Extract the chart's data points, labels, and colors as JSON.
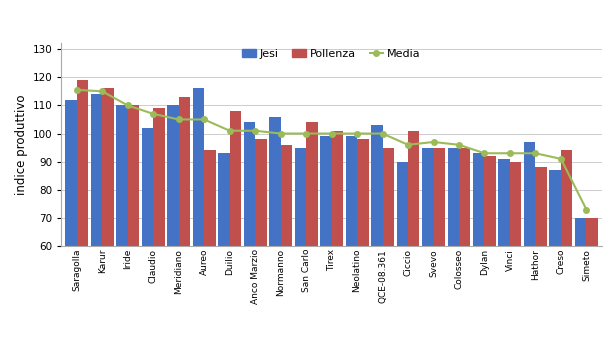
{
  "categories": [
    "Saragolla",
    "Karur",
    "Iride",
    "Claudio",
    "Meridiano",
    "Aureo",
    "Duilio",
    "Anco Marzio",
    "Normanno",
    "San Carlo",
    "Tirex",
    "Neolatino",
    "QCE-08.361",
    "Ciccio",
    "Svevo",
    "Colosseo",
    "Dylan",
    "Vinci",
    "Hathor",
    "Creso",
    "Simeto"
  ],
  "jesi": [
    112,
    114,
    110,
    102,
    110,
    116,
    93,
    104,
    106,
    95,
    99,
    99,
    103,
    90,
    95,
    95,
    93,
    91,
    97,
    87,
    70
  ],
  "pollenza": [
    119,
    116,
    110,
    109,
    113,
    94,
    108,
    98,
    96,
    104,
    101,
    98,
    95,
    101,
    95,
    95,
    92,
    90,
    88,
    94,
    70
  ],
  "media": [
    115.5,
    115,
    110,
    107,
    105,
    105,
    101,
    101,
    100,
    100,
    100,
    100,
    100,
    96,
    97,
    96,
    93,
    93,
    93,
    91,
    73
  ],
  "jesi_color": "#4472C4",
  "pollenza_color": "#C0504D",
  "media_color": "#9BBB59",
  "ylabel": "indice produttivo",
  "ylim": [
    60,
    132
  ],
  "yticks": [
    60,
    70,
    80,
    90,
    100,
    110,
    120,
    130
  ],
  "legend_labels": [
    "Jesi",
    "Pollenza",
    "Media"
  ],
  "grid_color": "#CCCCCC",
  "background_color": "#FFFFFF"
}
